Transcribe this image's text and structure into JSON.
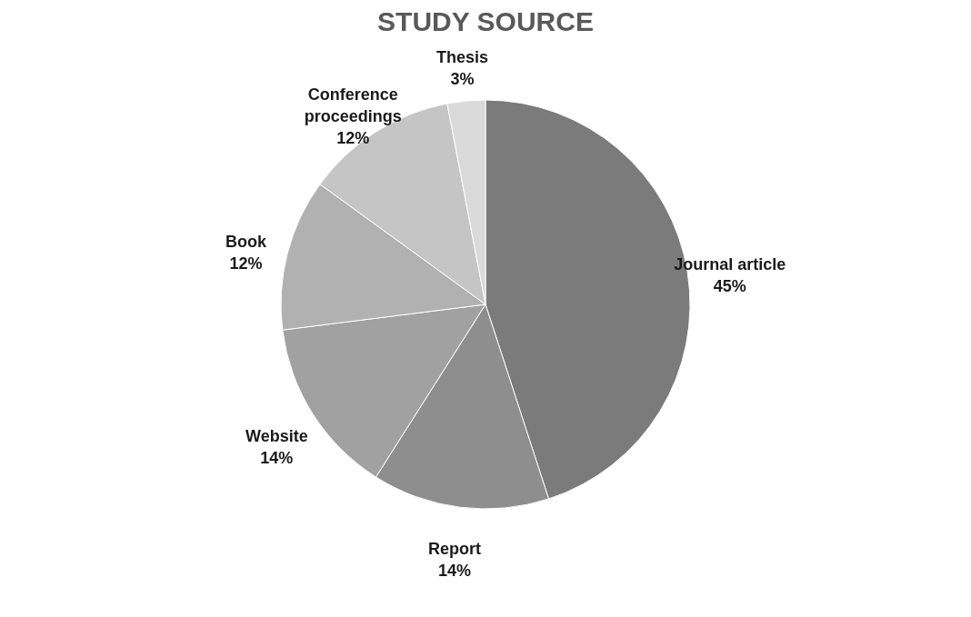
{
  "chart_data": {
    "type": "pie",
    "title": "STUDY SOURCE",
    "categories": [
      "Journal article",
      "Report",
      "Website",
      "Book",
      "Conference proceedings",
      "Thesis"
    ],
    "values": [
      45,
      14,
      14,
      12,
      12,
      3
    ],
    "value_labels": [
      "45%",
      "14%",
      "14%",
      "12%",
      "12%",
      "3%"
    ],
    "colors": [
      "#7b7b7b",
      "#8e8e8e",
      "#a1a1a1",
      "#b1b1b1",
      "#c5c5c5",
      "#dadada"
    ]
  }
}
